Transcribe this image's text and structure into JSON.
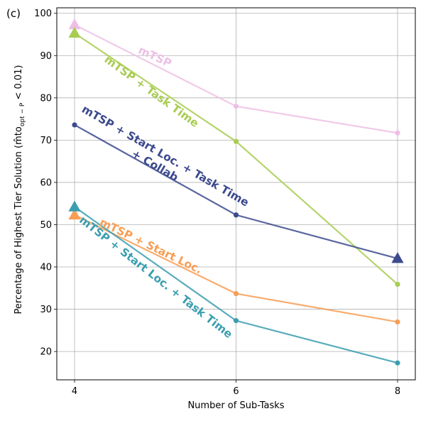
{
  "panel_label": "(c)",
  "chart_data": {
    "type": "line",
    "xlabel": "Number of Sub-Tasks",
    "ylabel": "Percentage of Highest Tier Solution (m̂t̂o₀ₚₜ₋ₚ < 0.01)",
    "ylabel_main": "Percentage of Highest Tier Solution (",
    "ylabel_math": "m̂to",
    "ylabel_sub": "opt − P",
    "ylabel_tail": " < 0.01)",
    "x_ticks": [
      4,
      6,
      8
    ],
    "y_ticks": [
      20,
      30,
      40,
      50,
      60,
      70,
      80,
      90,
      100
    ],
    "xlim": [
      3.78,
      8.22
    ],
    "ylim": [
      13.3,
      101.3
    ],
    "grid": true,
    "series": [
      {
        "name": "mTSP",
        "color": "#eebfe6",
        "x": [
          4,
          6,
          8
        ],
        "y": [
          97.3,
          78.0,
          71.7
        ],
        "markers": [
          "triangle",
          "circle",
          "circle"
        ]
      },
      {
        "name": "mTSP + Task Time",
        "color": "#a8cc51",
        "x": [
          4,
          6,
          8
        ],
        "y": [
          95.3,
          69.7,
          35.9
        ],
        "markers": [
          "triangle",
          "circle",
          "circle"
        ]
      },
      {
        "name": "mTSP + Start Loc. + Task Time + Collab",
        "name_lines": [
          "mTSP + Start Loc. + Task Time",
          "+ Collab"
        ],
        "color": "#3c4a8e",
        "x": [
          4,
          6,
          8
        ],
        "y": [
          73.6,
          52.3,
          42.0
        ],
        "markers": [
          "circle",
          "circle",
          "triangle"
        ]
      },
      {
        "name": "mTSP + Start Loc.",
        "color": "#f79e55",
        "x": [
          4,
          6,
          8
        ],
        "y": [
          52.3,
          33.7,
          27.0
        ],
        "markers": [
          "triangle",
          "circle",
          "circle"
        ]
      },
      {
        "name": "mTSP + Start Loc. + Task Time",
        "color": "#3a9eb0",
        "x": [
          4,
          6,
          8
        ],
        "y": [
          54.2,
          27.3,
          17.3
        ],
        "markers": [
          "triangle",
          "circle",
          "circle"
        ]
      }
    ]
  }
}
